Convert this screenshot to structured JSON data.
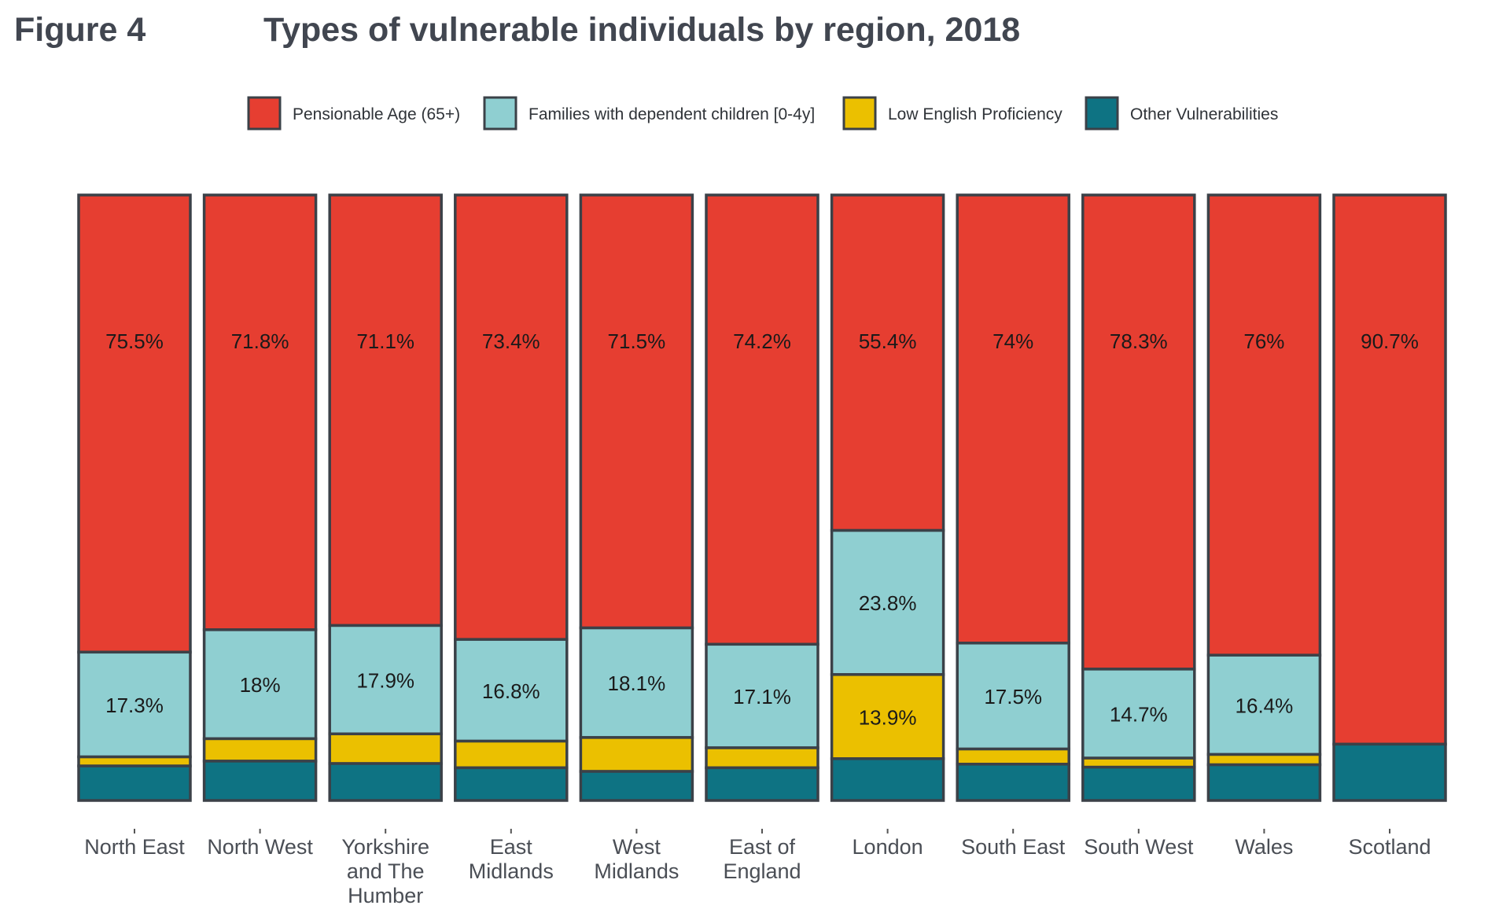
{
  "figure_label": "Figure 4",
  "chart_data": {
    "type": "bar",
    "stacked": true,
    "normalized": true,
    "title": "Types of vulnerable individuals by region, 2018",
    "xlabel": "",
    "ylabel": "",
    "ylim": [
      0,
      100
    ],
    "grid": false,
    "legend_position": "top",
    "categories": [
      [
        "North East"
      ],
      [
        "North West"
      ],
      [
        "Yorkshire",
        "and The",
        "Humber"
      ],
      [
        "East",
        "Midlands"
      ],
      [
        "West",
        "Midlands"
      ],
      [
        "East of",
        "England"
      ],
      [
        "London"
      ],
      [
        "South East"
      ],
      [
        "South West"
      ],
      [
        "Wales"
      ],
      [
        "Scotland"
      ]
    ],
    "series": [
      {
        "name": "Pensionable Age (65+)",
        "color": "#e63e31",
        "values": [
          75.5,
          71.8,
          71.1,
          73.4,
          71.5,
          74.2,
          55.4,
          74,
          78.3,
          76,
          90.7
        ],
        "labels": [
          "75.5%",
          "71.8%",
          "71.1%",
          "73.4%",
          "71.5%",
          "74.2%",
          "55.4%",
          "74%",
          "78.3%",
          "76%",
          "90.7%"
        ]
      },
      {
        "name": "Families with dependent children [0-4y]",
        "color": "#8fcfd1",
        "values": [
          17.3,
          18,
          17.9,
          16.8,
          18.1,
          17.1,
          23.8,
          17.5,
          14.7,
          16.4,
          0
        ],
        "labels": [
          "17.3%",
          "18%",
          "17.9%",
          "16.8%",
          "18.1%",
          "17.1%",
          "23.8%",
          "17.5%",
          "14.7%",
          "16.4%",
          ""
        ]
      },
      {
        "name": "Low English Proficiency",
        "color": "#ebc000",
        "values": [
          1.5,
          3.7,
          4.9,
          4.4,
          5.6,
          3.3,
          13.9,
          2.5,
          1.5,
          1.7,
          0
        ],
        "labels": [
          "",
          "",
          "",
          "",
          "",
          "",
          "13.9%",
          "",
          "",
          "",
          ""
        ]
      },
      {
        "name": "Other Vulnerabilities",
        "color": "#0e7383",
        "values": [
          5.7,
          6.5,
          6.1,
          5.4,
          4.8,
          5.4,
          6.9,
          6,
          5.5,
          5.9,
          9.3
        ],
        "labels": [
          "",
          "",
          "",
          "",
          "",
          "",
          "",
          "",
          "",
          "",
          ""
        ]
      }
    ]
  }
}
